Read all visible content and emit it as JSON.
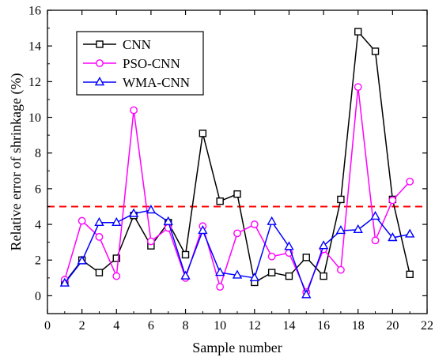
{
  "chart_data": {
    "type": "line",
    "title": "",
    "xlabel": "Sample number",
    "ylabel": "Relative error of shrinkage (%)",
    "xlim": [
      0,
      22
    ],
    "ylim": [
      -1,
      16
    ],
    "xticks": [
      0,
      2,
      4,
      6,
      8,
      10,
      12,
      14,
      16,
      18,
      20,
      22
    ],
    "yticks": [
      0,
      2,
      4,
      6,
      8,
      10,
      12,
      14,
      16
    ],
    "x": [
      1,
      2,
      3,
      4,
      5,
      6,
      7,
      8,
      9,
      10,
      11,
      12,
      13,
      14,
      15,
      16,
      17,
      18,
      19,
      20,
      21
    ],
    "series": [
      {
        "name": "CNN",
        "color": "#000000",
        "marker": "square",
        "values": [
          0.75,
          2.0,
          1.3,
          2.1,
          4.5,
          2.8,
          4.1,
          2.3,
          9.1,
          5.3,
          5.7,
          0.75,
          1.3,
          1.1,
          2.15,
          1.1,
          5.4,
          14.8,
          13.7,
          5.4,
          1.2
        ]
      },
      {
        "name": "PSO-CNN",
        "color": "#ff00ff",
        "marker": "circle",
        "values": [
          0.9,
          4.2,
          3.3,
          1.1,
          10.4,
          3.05,
          3.8,
          1.0,
          3.9,
          0.5,
          3.5,
          4.0,
          2.2,
          2.4,
          0.2,
          2.6,
          1.45,
          11.7,
          3.1,
          5.35,
          6.4
        ]
      },
      {
        "name": "WMA-CNN",
        "color": "#0000ff",
        "marker": "triangle",
        "values": [
          0.7,
          1.95,
          4.1,
          4.1,
          4.6,
          4.8,
          4.15,
          1.1,
          3.65,
          1.3,
          1.15,
          1.0,
          4.15,
          2.75,
          0.05,
          2.8,
          3.65,
          3.7,
          4.45,
          3.25,
          3.45
        ]
      }
    ],
    "reference_line": {
      "y": 5,
      "color": "#ff0000",
      "style": "dashed"
    },
    "legend_position": "top-left",
    "grid": false
  }
}
